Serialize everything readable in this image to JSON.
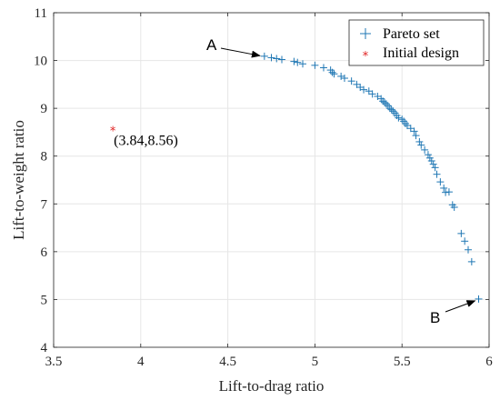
{
  "chart_data": {
    "type": "scatter",
    "xlabel": "Lift-to-drag ratio",
    "ylabel": "Lift-to-weight ratio",
    "xlim": [
      3.5,
      6
    ],
    "ylim": [
      4,
      11
    ],
    "xticks": [
      3.5,
      4,
      4.5,
      5,
      5.5,
      6
    ],
    "yticks": [
      4,
      5,
      6,
      7,
      8,
      9,
      10,
      11
    ],
    "grid": true,
    "legend_position": "top-right",
    "series": [
      {
        "name": "Pareto set",
        "marker": "+",
        "color": "#1f77b4",
        "points": [
          [
            4.71,
            10.09
          ],
          [
            4.75,
            10.06
          ],
          [
            4.78,
            10.04
          ],
          [
            4.81,
            10.02
          ],
          [
            4.88,
            9.98
          ],
          [
            4.9,
            9.96
          ],
          [
            4.93,
            9.93
          ],
          [
            5.0,
            9.9
          ],
          [
            5.05,
            9.85
          ],
          [
            5.09,
            9.8
          ],
          [
            5.1,
            9.75
          ],
          [
            5.11,
            9.72
          ],
          [
            5.15,
            9.67
          ],
          [
            5.17,
            9.63
          ],
          [
            5.21,
            9.57
          ],
          [
            5.24,
            9.5
          ],
          [
            5.26,
            9.44
          ],
          [
            5.28,
            9.39
          ],
          [
            5.31,
            9.36
          ],
          [
            5.33,
            9.3
          ],
          [
            5.36,
            9.25
          ],
          [
            5.38,
            9.2
          ],
          [
            5.39,
            9.15
          ],
          [
            5.4,
            9.12
          ],
          [
            5.41,
            9.09
          ],
          [
            5.42,
            9.05
          ],
          [
            5.43,
            9.0
          ],
          [
            5.44,
            8.97
          ],
          [
            5.45,
            8.94
          ],
          [
            5.46,
            8.9
          ],
          [
            5.47,
            8.85
          ],
          [
            5.48,
            8.8
          ],
          [
            5.5,
            8.77
          ],
          [
            5.51,
            8.73
          ],
          [
            5.52,
            8.68
          ],
          [
            5.53,
            8.64
          ],
          [
            5.55,
            8.58
          ],
          [
            5.57,
            8.52
          ],
          [
            5.58,
            8.43
          ],
          [
            5.6,
            8.3
          ],
          [
            5.61,
            8.23
          ],
          [
            5.63,
            8.13
          ],
          [
            5.65,
            8.03
          ],
          [
            5.66,
            7.96
          ],
          [
            5.67,
            7.9
          ],
          [
            5.68,
            7.83
          ],
          [
            5.69,
            7.76
          ],
          [
            5.7,
            7.62
          ],
          [
            5.72,
            7.46
          ],
          [
            5.74,
            7.33
          ],
          [
            5.75,
            7.24
          ],
          [
            5.77,
            7.25
          ],
          [
            5.79,
            6.98
          ],
          [
            5.8,
            6.93
          ],
          [
            5.84,
            6.38
          ],
          [
            5.86,
            6.22
          ],
          [
            5.88,
            6.04
          ],
          [
            5.9,
            5.79
          ],
          [
            5.94,
            5.01
          ]
        ]
      },
      {
        "name": "Initial design",
        "marker": "*",
        "color": "#e02020",
        "points": [
          [
            3.84,
            8.56
          ]
        ]
      }
    ],
    "annotations": [
      {
        "text": "A",
        "target": [
          4.7,
          10.1
        ]
      },
      {
        "text": "B",
        "target": [
          5.94,
          5.01
        ]
      },
      {
        "text": "(3.84,8.56)",
        "target": [
          3.84,
          8.56
        ]
      }
    ]
  }
}
